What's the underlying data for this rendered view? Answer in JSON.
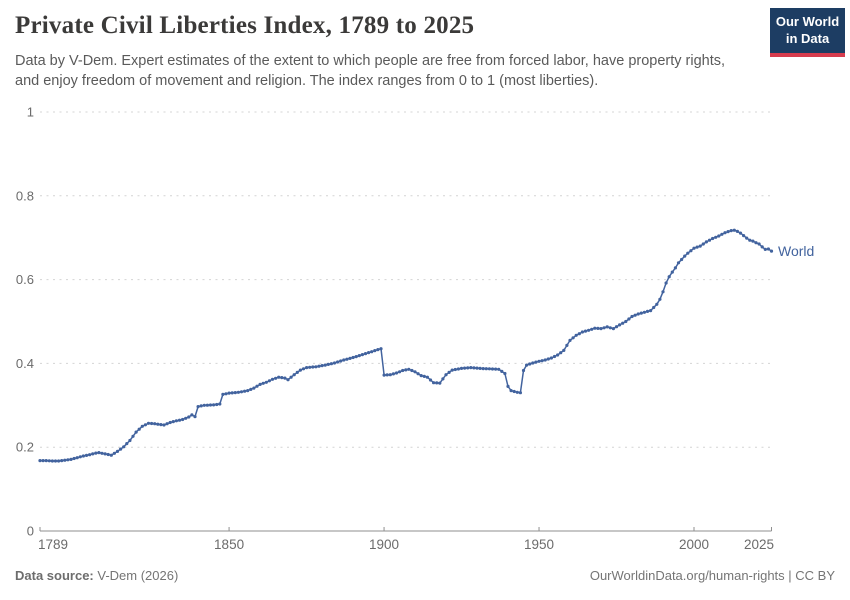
{
  "header": {
    "title": "Private Civil Liberties Index, 1789 to 2025",
    "subtitle": "Data by V-Dem. Expert estimates of the extent to which people are free from forced labor, have property rights, and enjoy freedom of movement and religion. The index ranges from 0 to 1 (most liberties).",
    "logo": {
      "line1": "Our World",
      "line2": "in Data",
      "bg_color": "#1d3d63",
      "accent_color": "#d73c4e",
      "text_color": "#ffffff"
    }
  },
  "chart_data": {
    "type": "line",
    "title": "Private Civil Liberties Index, 1789 to 2025",
    "xlabel": "",
    "ylabel": "",
    "xlim": [
      1789,
      2025
    ],
    "ylim": [
      0,
      1
    ],
    "x_ticks": [
      1789,
      1850,
      1900,
      1950,
      2000,
      2025
    ],
    "y_ticks": [
      0,
      0.2,
      0.4,
      0.6,
      0.8,
      1
    ],
    "grid": "horizontal-dashed",
    "legend_position": "end-of-line-label",
    "series": [
      {
        "name": "World",
        "color": "#42639e",
        "points": [
          [
            1789,
            0.168
          ],
          [
            1791,
            0.168
          ],
          [
            1793,
            0.167
          ],
          [
            1795,
            0.167
          ],
          [
            1797,
            0.169
          ],
          [
            1799,
            0.171
          ],
          [
            1801,
            0.175
          ],
          [
            1803,
            0.179
          ],
          [
            1805,
            0.182
          ],
          [
            1807,
            0.186
          ],
          [
            1808,
            0.187
          ],
          [
            1810,
            0.184
          ],
          [
            1812,
            0.181
          ],
          [
            1814,
            0.19
          ],
          [
            1816,
            0.201
          ],
          [
            1818,
            0.216
          ],
          [
            1820,
            0.236
          ],
          [
            1822,
            0.25
          ],
          [
            1824,
            0.257
          ],
          [
            1826,
            0.256
          ],
          [
            1829,
            0.253
          ],
          [
            1831,
            0.259
          ],
          [
            1833,
            0.263
          ],
          [
            1835,
            0.266
          ],
          [
            1837,
            0.272
          ],
          [
            1838,
            0.277
          ],
          [
            1839,
            0.273
          ],
          [
            1840,
            0.297
          ],
          [
            1842,
            0.3
          ],
          [
            1845,
            0.301
          ],
          [
            1847,
            0.303
          ],
          [
            1848,
            0.326
          ],
          [
            1850,
            0.329
          ],
          [
            1853,
            0.331
          ],
          [
            1856,
            0.335
          ],
          [
            1858,
            0.341
          ],
          [
            1860,
            0.35
          ],
          [
            1862,
            0.355
          ],
          [
            1864,
            0.362
          ],
          [
            1866,
            0.367
          ],
          [
            1868,
            0.365
          ],
          [
            1869,
            0.361
          ],
          [
            1871,
            0.373
          ],
          [
            1873,
            0.384
          ],
          [
            1875,
            0.39
          ],
          [
            1878,
            0.392
          ],
          [
            1881,
            0.396
          ],
          [
            1884,
            0.401
          ],
          [
            1887,
            0.408
          ],
          [
            1890,
            0.414
          ],
          [
            1893,
            0.421
          ],
          [
            1896,
            0.428
          ],
          [
            1898,
            0.433
          ],
          [
            1899,
            0.435
          ],
          [
            1900,
            0.372
          ],
          [
            1902,
            0.373
          ],
          [
            1904,
            0.377
          ],
          [
            1906,
            0.383
          ],
          [
            1908,
            0.386
          ],
          [
            1910,
            0.38
          ],
          [
            1912,
            0.371
          ],
          [
            1914,
            0.367
          ],
          [
            1916,
            0.354
          ],
          [
            1918,
            0.353
          ],
          [
            1920,
            0.373
          ],
          [
            1922,
            0.384
          ],
          [
            1925,
            0.388
          ],
          [
            1928,
            0.39
          ],
          [
            1931,
            0.388
          ],
          [
            1934,
            0.387
          ],
          [
            1937,
            0.386
          ],
          [
            1939,
            0.376
          ],
          [
            1940,
            0.345
          ],
          [
            1941,
            0.335
          ],
          [
            1943,
            0.331
          ],
          [
            1944,
            0.33
          ],
          [
            1945,
            0.383
          ],
          [
            1946,
            0.396
          ],
          [
            1948,
            0.401
          ],
          [
            1950,
            0.405
          ],
          [
            1952,
            0.408
          ],
          [
            1954,
            0.413
          ],
          [
            1956,
            0.42
          ],
          [
            1958,
            0.431
          ],
          [
            1960,
            0.455
          ],
          [
            1962,
            0.467
          ],
          [
            1964,
            0.475
          ],
          [
            1966,
            0.479
          ],
          [
            1968,
            0.484
          ],
          [
            1970,
            0.483
          ],
          [
            1972,
            0.487
          ],
          [
            1974,
            0.483
          ],
          [
            1976,
            0.492
          ],
          [
            1978,
            0.5
          ],
          [
            1980,
            0.512
          ],
          [
            1982,
            0.518
          ],
          [
            1984,
            0.522
          ],
          [
            1986,
            0.526
          ],
          [
            1988,
            0.541
          ],
          [
            1989,
            0.553
          ],
          [
            1990,
            0.571
          ],
          [
            1991,
            0.592
          ],
          [
            1992,
            0.607
          ],
          [
            1993,
            0.618
          ],
          [
            1994,
            0.628
          ],
          [
            1995,
            0.64
          ],
          [
            1996,
            0.648
          ],
          [
            1997,
            0.656
          ],
          [
            1998,
            0.663
          ],
          [
            1999,
            0.669
          ],
          [
            2000,
            0.675
          ],
          [
            2002,
            0.68
          ],
          [
            2004,
            0.69
          ],
          [
            2006,
            0.698
          ],
          [
            2008,
            0.704
          ],
          [
            2010,
            0.712
          ],
          [
            2012,
            0.717
          ],
          [
            2013,
            0.718
          ],
          [
            2014,
            0.715
          ],
          [
            2015,
            0.711
          ],
          [
            2016,
            0.705
          ],
          [
            2017,
            0.699
          ],
          [
            2018,
            0.694
          ],
          [
            2019,
            0.692
          ],
          [
            2020,
            0.688
          ],
          [
            2021,
            0.685
          ],
          [
            2022,
            0.678
          ],
          [
            2023,
            0.672
          ],
          [
            2024,
            0.673
          ],
          [
            2025,
            0.668
          ]
        ]
      }
    ]
  },
  "footer": {
    "source_label": "Data source:",
    "source_value": " V-Dem (2026)",
    "link_text": "OurWorldinData.org/human-rights | CC BY"
  }
}
